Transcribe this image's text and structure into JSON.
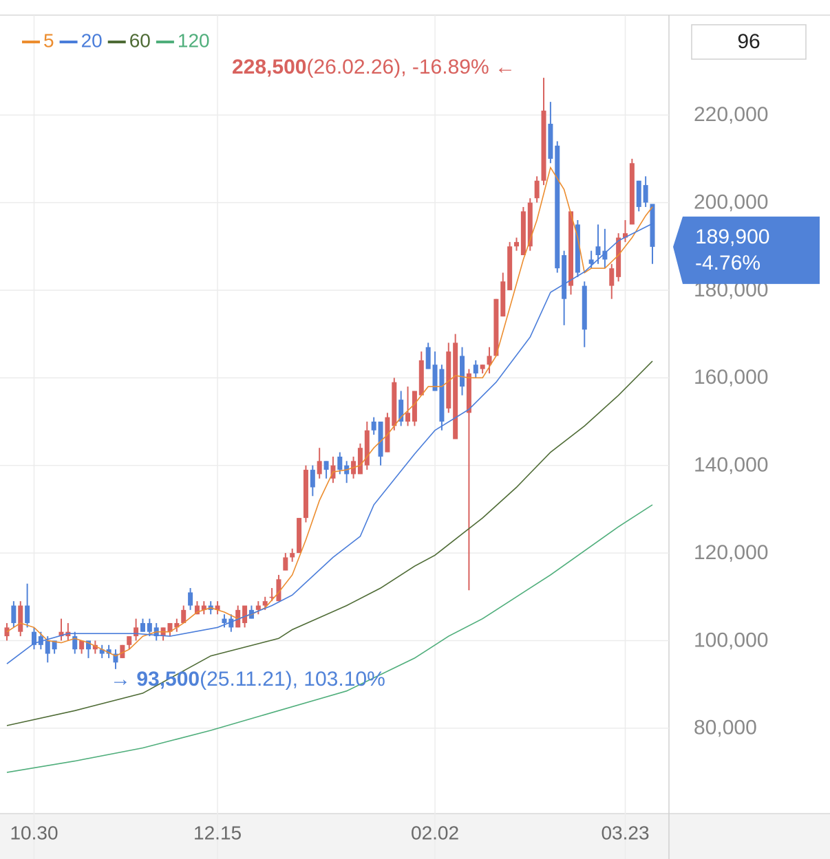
{
  "chart_data": {
    "type": "candlestick",
    "period": "96",
    "up_color": "#d8625e",
    "down_color": "#5082d8",
    "grid": true,
    "categories": [
      null,
      null,
      null,
      null,
      "10.30",
      null,
      null,
      null,
      null,
      null,
      null,
      null,
      null,
      null,
      null,
      null,
      null,
      null,
      null,
      null,
      null,
      null,
      null,
      null,
      null,
      null,
      null,
      null,
      null,
      null,
      null,
      "12.15",
      null,
      null,
      null,
      null,
      null,
      null,
      null,
      null,
      null,
      null,
      null,
      null,
      null,
      null,
      null,
      null,
      null,
      null,
      null,
      null,
      null,
      null,
      null,
      null,
      null,
      null,
      null,
      null,
      null,
      null,
      null,
      "02.02",
      null,
      null,
      null,
      null,
      null,
      null,
      null,
      null,
      null,
      null,
      null,
      null,
      null,
      null,
      null,
      null,
      null,
      null,
      null,
      null,
      null,
      null,
      null,
      null,
      null,
      null,
      null,
      "03.23",
      null,
      null,
      null,
      null
    ],
    "open": [
      101000,
      108000,
      102000,
      108000,
      102000,
      101000,
      100000,
      100000,
      101000,
      101000,
      101000,
      98000,
      100000,
      98000,
      98000,
      98000,
      97000,
      96000,
      99000,
      101000,
      104000,
      104000,
      103000,
      101000,
      102000,
      103000,
      104000,
      111000,
      106000,
      107000,
      108000,
      107000,
      105000,
      105000,
      103000,
      104000,
      107000,
      107000,
      108000,
      110000,
      109000,
      116000,
      119000,
      120000,
      128000,
      139000,
      138000,
      141000,
      137000,
      142000,
      140000,
      138000,
      138000,
      140000,
      150000,
      150000,
      143000,
      149000,
      155000,
      150000,
      150000,
      156000,
      167000,
      163000,
      162000,
      153000,
      146000,
      165000,
      152000,
      163000,
      162000,
      163000,
      165000,
      174000,
      180000,
      190000,
      188000,
      190000,
      201000,
      205000,
      218000,
      213000,
      188000,
      181000,
      195000,
      181000,
      187000,
      190000,
      189000,
      181000,
      183000,
      192000,
      195000,
      205000,
      204000,
      199700
    ],
    "high": [
      104000,
      109000,
      109000,
      113000,
      103000,
      102000,
      101000,
      100000,
      105000,
      104000,
      102000,
      100000,
      100000,
      100000,
      99000,
      99000,
      98000,
      99000,
      101000,
      105000,
      105000,
      105000,
      104000,
      103000,
      104000,
      105000,
      108000,
      112000,
      109000,
      109000,
      109000,
      109000,
      106000,
      106000,
      108000,
      108000,
      108000,
      109000,
      110000,
      112000,
      115000,
      120000,
      121000,
      128000,
      140000,
      140000,
      144000,
      141000,
      142000,
      143000,
      141000,
      142000,
      145000,
      150000,
      151000,
      150000,
      152000,
      160000,
      157000,
      158000,
      157000,
      166000,
      168000,
      166000,
      163000,
      168000,
      170000,
      167000,
      162000,
      164000,
      163000,
      167000,
      178000,
      184000,
      191000,
      192000,
      199000,
      201000,
      206000,
      228500,
      223000,
      214000,
      189000,
      198000,
      196000,
      182000,
      189000,
      195000,
      194000,
      186000,
      193000,
      196000,
      210000,
      205000,
      206000,
      199700
    ],
    "low": [
      100000,
      103000,
      101000,
      103000,
      98000,
      98000,
      95000,
      97000,
      100000,
      100000,
      97000,
      97000,
      96000,
      97000,
      96000,
      96000,
      93500,
      96000,
      98000,
      100000,
      102000,
      101000,
      100000,
      100000,
      101000,
      102000,
      104000,
      107000,
      106000,
      106000,
      106000,
      106000,
      103000,
      102000,
      103000,
      103000,
      105000,
      106000,
      107000,
      109000,
      109000,
      116000,
      118000,
      120000,
      127000,
      133000,
      137000,
      137000,
      136000,
      138000,
      136000,
      137000,
      138000,
      139000,
      147000,
      140000,
      143000,
      148000,
      149000,
      149000,
      149000,
      156000,
      162000,
      157000,
      148000,
      152000,
      146000,
      156000,
      111500,
      160000,
      161000,
      161000,
      165000,
      174000,
      180000,
      189000,
      188000,
      189000,
      200000,
      204000,
      209000,
      184000,
      172000,
      179000,
      183000,
      167000,
      185000,
      186000,
      185000,
      178000,
      182000,
      191000,
      195000,
      198000,
      199000,
      186000
    ],
    "close": [
      103000,
      104000,
      108000,
      104000,
      99000,
      99000,
      97000,
      98000,
      102000,
      102000,
      98000,
      100000,
      98000,
      99000,
      97000,
      97000,
      95000,
      99000,
      101000,
      103000,
      102000,
      102000,
      101000,
      103000,
      104000,
      104000,
      107000,
      108000,
      108000,
      108000,
      107000,
      108000,
      104000,
      103000,
      107000,
      108000,
      105000,
      108000,
      109000,
      110000,
      114000,
      119000,
      120000,
      128000,
      139000,
      135000,
      141000,
      139000,
      140000,
      139000,
      138000,
      141000,
      144000,
      148000,
      148000,
      142000,
      151000,
      159000,
      150000,
      152000,
      157000,
      164000,
      162000,
      157000,
      150000,
      166000,
      168000,
      158000,
      161000,
      161000,
      163000,
      165000,
      178000,
      182000,
      190000,
      191000,
      198000,
      200000,
      205000,
      221000,
      210000,
      185000,
      178000,
      198000,
      184000,
      171000,
      186000,
      188000,
      187000,
      185000,
      192000,
      193000,
      209000,
      199000,
      200000,
      189900
    ],
    "series": [
      {
        "name": "5",
        "color": "#ec8d2f",
        "x": [
          0,
          2,
          4,
          6,
          8,
          10,
          12,
          14,
          16,
          18,
          20,
          22,
          24,
          26,
          28,
          30,
          32,
          34,
          36,
          38,
          40,
          42,
          44,
          46,
          48,
          50,
          52,
          54,
          56,
          58,
          60,
          62,
          64,
          66,
          68,
          70,
          72,
          74,
          76,
          78,
          80,
          82,
          84,
          85,
          86,
          88,
          90,
          92,
          94,
          95
        ],
        "values": [
          102000,
          104000,
          103000,
          100000,
          99500,
          100500,
          99500,
          98000,
          96500,
          98000,
          101000,
          102000,
          102000,
          104000,
          106500,
          107500,
          106500,
          105000,
          106000,
          107500,
          111000,
          115000,
          123000,
          132000,
          138500,
          139000,
          140000,
          144000,
          147000,
          151000,
          154000,
          158000,
          158000,
          160500,
          160000,
          160000,
          165000,
          176000,
          187000,
          196000,
          208000,
          203000,
          192000,
          184000,
          185000,
          185000,
          188000,
          192000,
          197000,
          199000
        ]
      },
      {
        "name": "20",
        "color": "#4a7dda",
        "x": [
          0,
          4,
          9,
          19,
          24,
          31,
          39,
          42,
          48,
          52,
          54,
          60,
          63,
          68,
          72,
          77,
          80,
          85,
          90,
          95
        ],
        "values": [
          94700,
          99400,
          101600,
          101600,
          101000,
          103000,
          108000,
          110400,
          119000,
          123800,
          131000,
          142600,
          148000,
          152800,
          159000,
          169300,
          179500,
          184200,
          191300,
          195200
        ]
      },
      {
        "name": "60",
        "color": "#4e6b35",
        "x": [
          0,
          10,
          20,
          30,
          40,
          42,
          50,
          55,
          60,
          63,
          70,
          75,
          80,
          85,
          90,
          95
        ],
        "values": [
          80600,
          84000,
          88000,
          96500,
          100500,
          102500,
          108000,
          112000,
          117000,
          119500,
          128000,
          135000,
          143000,
          149000,
          156000,
          163800
        ]
      },
      {
        "name": "120",
        "color": "#4fae7b",
        "x": [
          0,
          10,
          20,
          30,
          40,
          50,
          60,
          65,
          70,
          80,
          90,
          95
        ],
        "values": [
          69900,
          72500,
          75500,
          79500,
          84000,
          88500,
          96000,
          101000,
          105000,
          115000,
          126000,
          131000
        ]
      }
    ],
    "ylim": [
      60500,
      242800
    ],
    "yticks": [
      {
        "value": 80000,
        "label": "80,000"
      },
      {
        "value": 100000,
        "label": "100,000"
      },
      {
        "value": 120000,
        "label": "120,000"
      },
      {
        "value": 140000,
        "label": "140,000"
      },
      {
        "value": 160000,
        "label": "160,000"
      },
      {
        "value": 180000,
        "label": "180,000"
      },
      {
        "value": 200000,
        "label": "200,000"
      },
      {
        "value": 220000,
        "label": "220,000"
      }
    ],
    "max_marker": {
      "value": 228500,
      "label": "228,500",
      "detail": "(26.02.26), -16.89%",
      "arrow": "←"
    },
    "min_marker": {
      "value": 93500,
      "label": "93,500",
      "detail": "(25.11.21), 103.10%",
      "arrow": "→"
    },
    "last_price": {
      "value": 189900,
      "label": "189,900",
      "change": "-4.76%"
    }
  }
}
